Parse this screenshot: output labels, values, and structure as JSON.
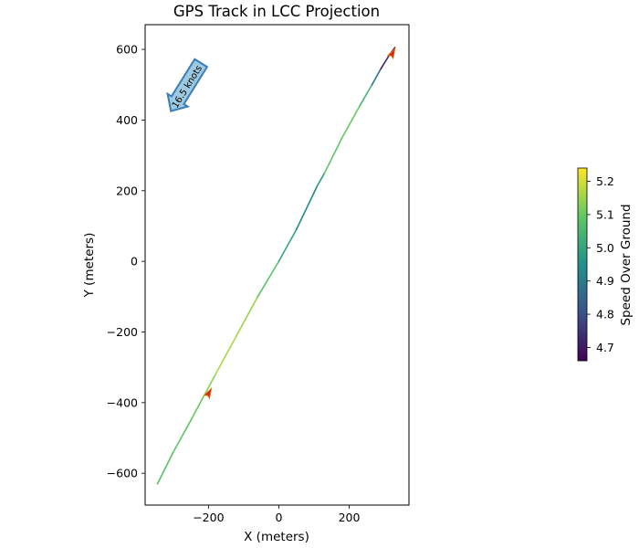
{
  "chart_data": {
    "type": "line",
    "title": "GPS Track in LCC Projection",
    "xlabel": "X (meters)",
    "ylabel": "Y (meters)",
    "xlim": [
      -380,
      370
    ],
    "ylim": [
      -690,
      670
    ],
    "xticks": [
      -200,
      0,
      200
    ],
    "yticks": [
      -600,
      -400,
      -200,
      0,
      200,
      400,
      600
    ],
    "grid": false,
    "colorbar": {
      "label": "Speed Over Ground",
      "range": [
        4.66,
        5.24
      ],
      "ticks": [
        4.7,
        4.8,
        4.9,
        5.0,
        5.1,
        5.2
      ]
    },
    "series": [
      {
        "points": [
          {
            "x": -345,
            "y": -630,
            "speed": 5.05
          },
          {
            "x": -300,
            "y": -540,
            "speed": 5.1
          },
          {
            "x": -250,
            "y": -450,
            "speed": 5.08
          },
          {
            "x": -215,
            "y": -385,
            "speed": 5.12
          },
          {
            "x": -180,
            "y": -320,
            "speed": 5.15
          },
          {
            "x": -120,
            "y": -210,
            "speed": 5.18
          },
          {
            "x": -60,
            "y": -100,
            "speed": 5.12
          },
          {
            "x": 0,
            "y": 0,
            "speed": 5.05
          },
          {
            "x": 50,
            "y": 90,
            "speed": 4.95
          },
          {
            "x": 110,
            "y": 215,
            "speed": 4.9
          },
          {
            "x": 130,
            "y": 250,
            "speed": 5.05
          },
          {
            "x": 180,
            "y": 350,
            "speed": 5.12
          },
          {
            "x": 230,
            "y": 440,
            "speed": 5.08
          },
          {
            "x": 265,
            "y": 500,
            "speed": 5.0
          },
          {
            "x": 290,
            "y": 545,
            "speed": 4.75
          },
          {
            "x": 315,
            "y": 585,
            "speed": 4.7
          },
          {
            "x": 330,
            "y": 605,
            "speed": 4.68
          }
        ]
      }
    ],
    "annotations": [
      {
        "type": "arrow",
        "x": -200,
        "y": -375,
        "color": "#d62728"
      },
      {
        "type": "arrow",
        "x": 322,
        "y": 587,
        "color": "#d62728"
      },
      {
        "type": "wind-arrow",
        "text": "16.5 knots",
        "x": -260,
        "y": 500,
        "color": "#9ecae1"
      }
    ]
  }
}
